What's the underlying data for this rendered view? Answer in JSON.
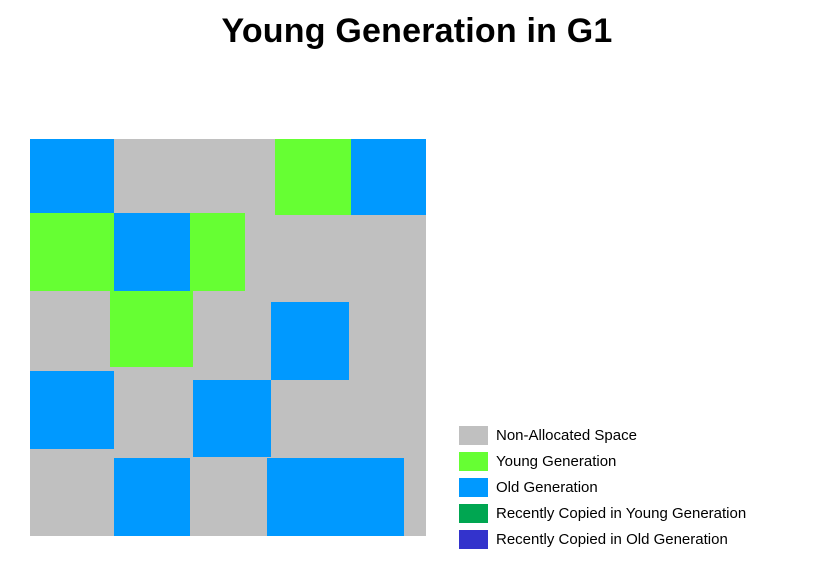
{
  "title": "Young Generation in G1",
  "colors": {
    "non_allocated": "#c0c0c0",
    "young": "#66ff33",
    "old": "#0099ff",
    "recent_young": "#00a651",
    "recent_old": "#3333cc"
  },
  "regions": [
    {
      "kind": "old"
    },
    {
      "kind": "young"
    },
    {
      "kind": "old"
    },
    {
      "kind": "young"
    },
    {
      "kind": "old"
    },
    {
      "kind": "young"
    },
    {
      "kind": "young"
    },
    {
      "kind": "old"
    },
    {
      "kind": "old"
    },
    {
      "kind": "old"
    },
    {
      "kind": "old"
    },
    {
      "kind": "old"
    }
  ],
  "legend": [
    {
      "label": "Non-Allocated Space",
      "color_key": "non_allocated"
    },
    {
      "label": "Young Generation",
      "color_key": "young"
    },
    {
      "label": "Old Generation",
      "color_key": "old"
    },
    {
      "label": "Recently Copied in Young Generation",
      "color_key": "recent_young"
    },
    {
      "label": "Recently Copied in Old Generation",
      "color_key": "recent_old"
    }
  ]
}
